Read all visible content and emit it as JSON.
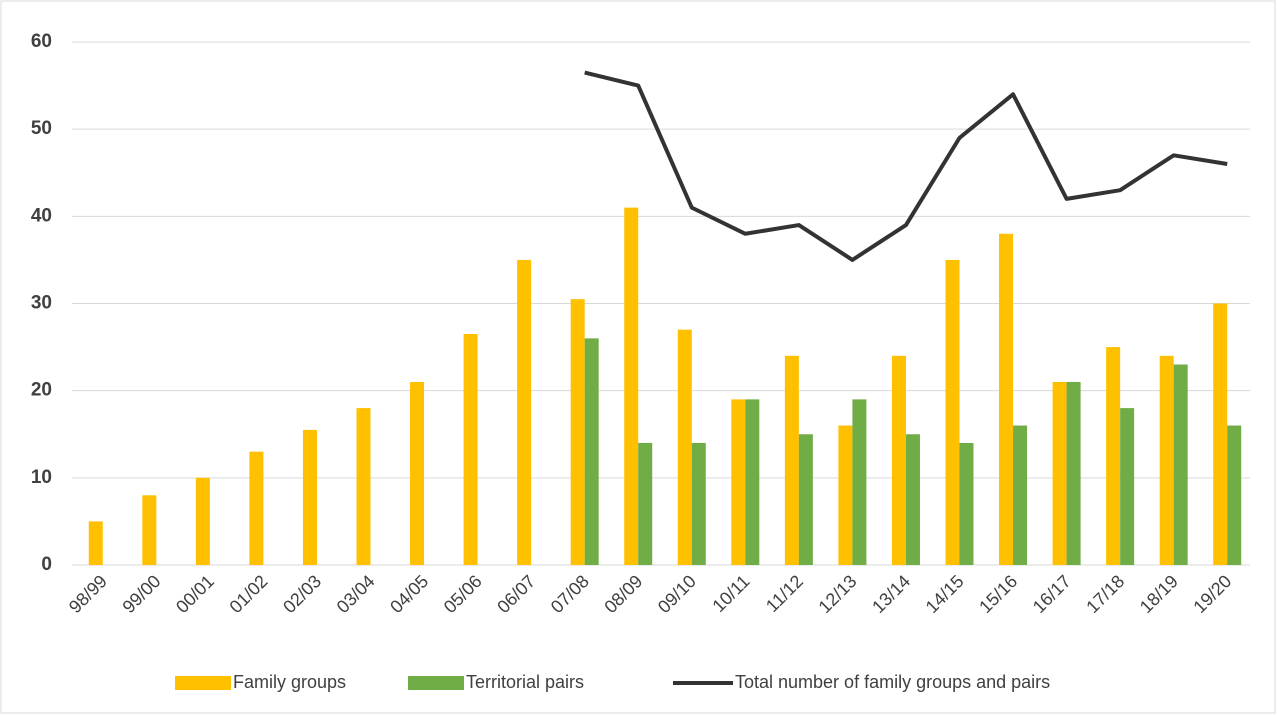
{
  "chart_data": {
    "type": "bar",
    "categories": [
      "98/99",
      "99/00",
      "00/01",
      "01/02",
      "02/03",
      "03/04",
      "04/05",
      "05/06",
      "06/07",
      "07/08",
      "08/09",
      "09/10",
      "10/11",
      "11/12",
      "12/13",
      "13/14",
      "14/15",
      "15/16",
      "16/17",
      "17/18",
      "18/19",
      "19/20"
    ],
    "series": [
      {
        "name": "Family groups",
        "color": "#ffc000",
        "type": "bar",
        "values": [
          5,
          8,
          10,
          13,
          15.5,
          18,
          21,
          26.5,
          35,
          30.5,
          41,
          27,
          19,
          24,
          16,
          24,
          35,
          38,
          21,
          25,
          24,
          30
        ]
      },
      {
        "name": "Territorial pairs",
        "color": "#70ad47",
        "type": "bar",
        "values": [
          null,
          null,
          null,
          null,
          null,
          null,
          null,
          null,
          null,
          26,
          14,
          14,
          19,
          15,
          19,
          15,
          14,
          16,
          21,
          18,
          23,
          16
        ]
      },
      {
        "name": "Total number of family groups and pairs",
        "color": "#333333",
        "type": "line",
        "values": [
          null,
          null,
          null,
          null,
          null,
          null,
          null,
          null,
          null,
          56.5,
          55,
          41,
          38,
          39,
          35,
          39,
          49,
          54,
          42,
          43,
          47,
          46
        ]
      }
    ],
    "ylim": [
      0,
      60
    ],
    "yticks": [
      0,
      10,
      20,
      30,
      40,
      50,
      60
    ],
    "grid": true,
    "legend": "bottom"
  }
}
